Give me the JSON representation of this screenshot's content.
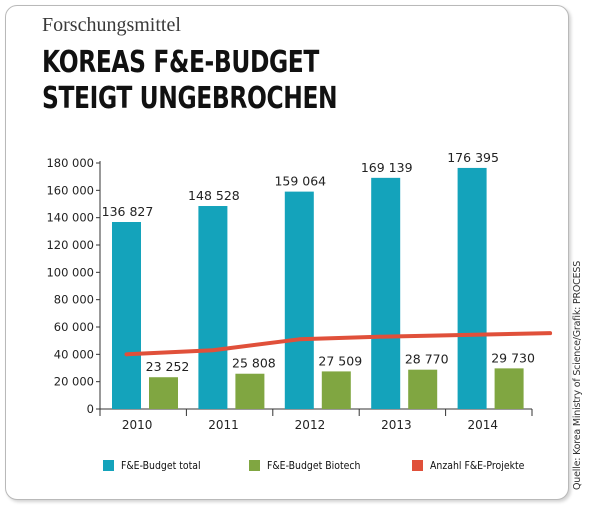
{
  "header": {
    "kicker": "Forschungsmittel",
    "title_line1": "KOREAS F&E-BUDGET",
    "title_line2": "STEIGT UNGEBROCHEN"
  },
  "source": "Quelle: Korea Ministry of Science/Grafik: PROCESS",
  "colors": {
    "total": "#14a3bb",
    "biotech": "#80a641",
    "projects": "#e0503a",
    "axis": "#333333"
  },
  "chart_data": {
    "type": "bar",
    "categories": [
      "2010",
      "2011",
      "2012",
      "2013",
      "2014"
    ],
    "series": [
      {
        "name": "F&E-Budget total",
        "kind": "bar",
        "values": [
          136827,
          148528,
          159064,
          169139,
          176395
        ],
        "labels": [
          "136 827",
          "148 528",
          "159 064",
          "169 139",
          "176 395"
        ]
      },
      {
        "name": "F&E-Budget Biotech",
        "kind": "bar",
        "values": [
          23252,
          25808,
          27509,
          28770,
          29730
        ],
        "labels": [
          "23 252",
          "25 808",
          "27 509",
          "28 770",
          "29 730"
        ]
      },
      {
        "name": "Anzahl F&E-Projekte",
        "kind": "line",
        "values": [
          40000,
          43000,
          51000,
          53000,
          55500
        ]
      }
    ],
    "ylim": [
      0,
      180000
    ],
    "yticks": [
      0,
      20000,
      40000,
      60000,
      80000,
      100000,
      120000,
      140000,
      160000,
      180000
    ],
    "ytick_labels": [
      "0",
      "20 000",
      "40 000",
      "60 000",
      "80 000",
      "100 000",
      "120 000",
      "140 000",
      "160 000",
      "180 000"
    ],
    "grid": false,
    "legend": "bottom"
  }
}
